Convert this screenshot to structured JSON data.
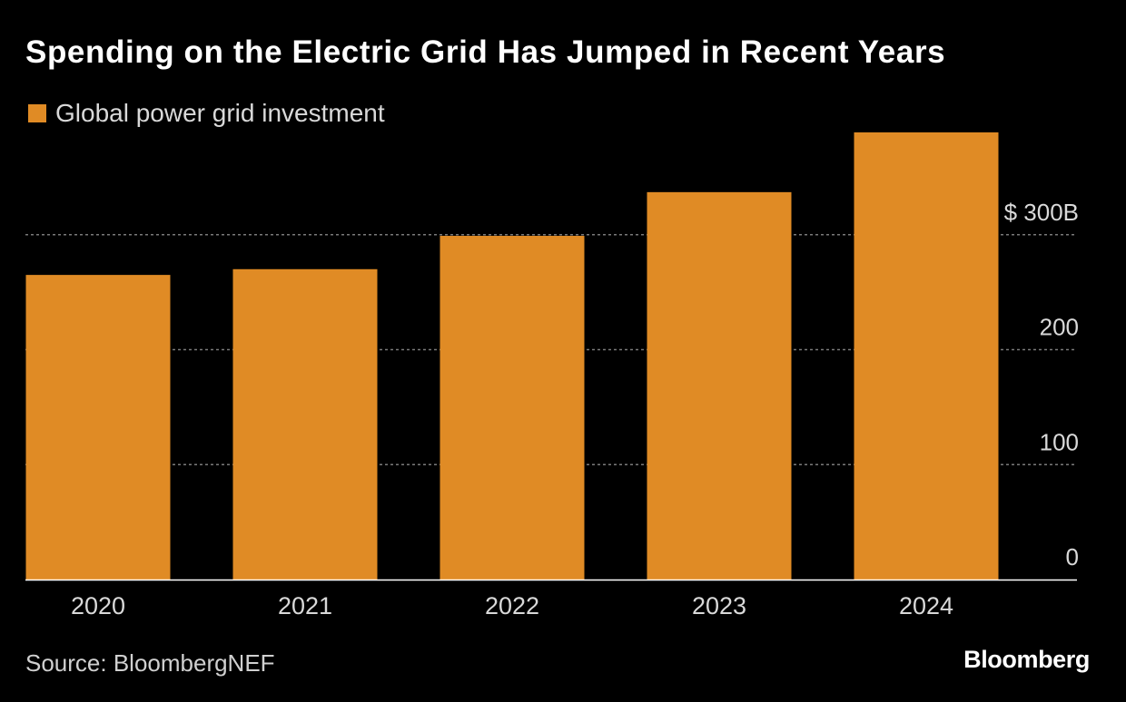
{
  "chart_data": {
    "type": "bar",
    "title": "Spending on the Electric Grid Has Jumped in Recent Years",
    "legend": [
      {
        "name": "Global power grid investment",
        "color": "#e08b25"
      }
    ],
    "categories": [
      "2020",
      "2021",
      "2022",
      "2023",
      "2024"
    ],
    "series": [
      {
        "name": "Global power grid investment",
        "values": [
          265,
          270,
          299,
          337,
          389
        ]
      }
    ],
    "xlabel": "",
    "ylabel": "",
    "ylim": [
      0,
      400
    ],
    "yticks": [
      {
        "value": 0,
        "label": "0"
      },
      {
        "value": 100,
        "label": "100"
      },
      {
        "value": 200,
        "label": "200"
      },
      {
        "value": 300,
        "label": "$ 300B"
      }
    ],
    "grid": true,
    "axis_side": "right",
    "legend_position": "top-left"
  },
  "footer": {
    "source": "Source: BloombergNEF",
    "brand": "Bloomberg"
  },
  "colors": {
    "background": "#000000",
    "bar": "#e08b25",
    "gridline": "#7a7a7a",
    "tick_text": "#d9d9d9",
    "baseline": "#ffffff"
  }
}
